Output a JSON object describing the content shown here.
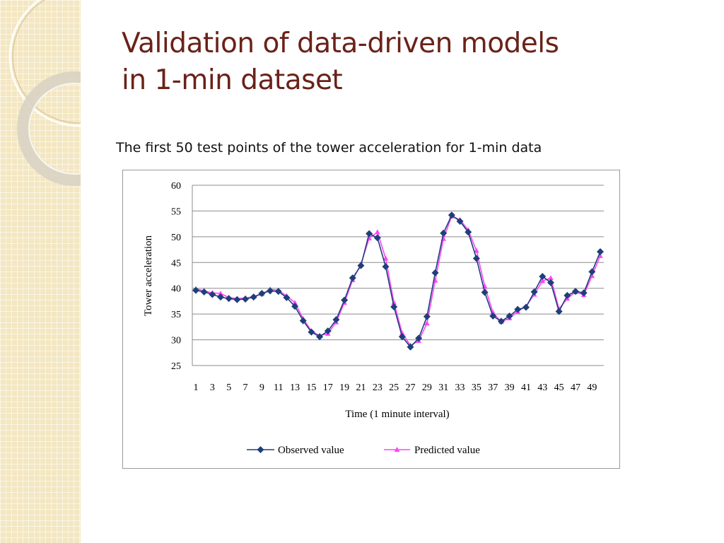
{
  "slide": {
    "title_line1": "Validation of data-driven models",
    "title_line2": "in 1-min dataset",
    "subtitle": "The first 50 test points of the tower acceleration for 1-min data"
  },
  "colors": {
    "title": "#6a2219",
    "observed": "#1f3f7a",
    "predicted": "#ff44ff"
  },
  "chart_data": {
    "type": "line",
    "xlabel": "Time (1 minute interval)",
    "ylabel": "Tower acceleration",
    "ylim": [
      25,
      60
    ],
    "yticks": [
      25,
      30,
      35,
      40,
      45,
      50,
      55,
      60
    ],
    "xlim": [
      1,
      50
    ],
    "xticks": [
      1,
      3,
      5,
      7,
      9,
      11,
      13,
      15,
      17,
      19,
      21,
      23,
      25,
      27,
      29,
      31,
      33,
      35,
      37,
      39,
      41,
      43,
      45,
      47,
      49
    ],
    "grid": "horizontal",
    "legend_position": "bottom",
    "series": [
      {
        "name": "Observed value",
        "marker": "diamond",
        "values": [
          39.6,
          39.3,
          38.8,
          38.3,
          38.0,
          37.8,
          37.9,
          38.3,
          39.0,
          39.5,
          39.4,
          38.2,
          36.5,
          33.7,
          31.5,
          30.6,
          31.7,
          33.9,
          37.7,
          42.0,
          44.4,
          50.6,
          49.8,
          44.2,
          36.4,
          30.6,
          28.6,
          30.3,
          34.5,
          43.0,
          50.7,
          54.2,
          53.0,
          50.9,
          45.8,
          39.2,
          34.6,
          33.6,
          34.6,
          35.9,
          36.3,
          39.3,
          42.3,
          41.1,
          35.5,
          38.6,
          39.4,
          39.1,
          43.2,
          47.1
        ]
      },
      {
        "name": "Predicted value",
        "marker": "triangle",
        "values": [
          39.9,
          39.5,
          39.1,
          39.0,
          38.2,
          38.0,
          38.1,
          38.4,
          38.9,
          39.8,
          39.6,
          38.5,
          37.2,
          34.1,
          31.7,
          30.8,
          31.2,
          33.4,
          37.2,
          41.6,
          44.7,
          49.7,
          50.9,
          45.8,
          37.2,
          31.3,
          28.9,
          29.8,
          33.2,
          41.5,
          49.6,
          54.0,
          53.3,
          51.3,
          47.3,
          40.4,
          35.3,
          33.5,
          34.2,
          35.5,
          36.5,
          38.8,
          41.4,
          42.0,
          36.0,
          38.0,
          39.3,
          38.7,
          42.4,
          46.3
        ]
      }
    ]
  }
}
